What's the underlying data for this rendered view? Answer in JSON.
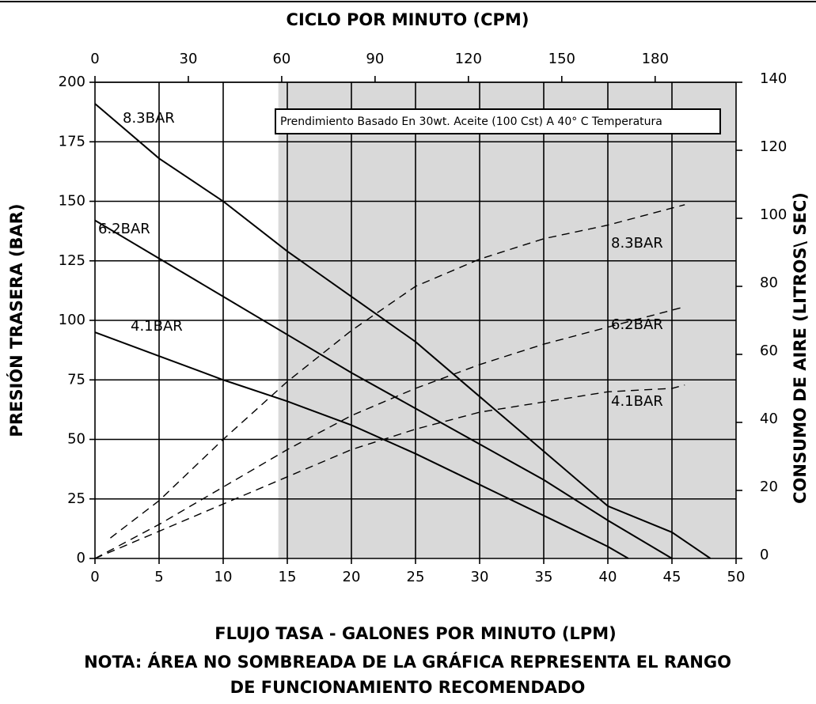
{
  "chart_data": {
    "type": "line",
    "title": "CICLO POR MINUTO (CPM)",
    "x_label": "FLUJO TASA - GALONES POR MINUTO (LPM)",
    "y_label": "PRESIÓN TRASERA (BAR)",
    "y2_label": "CONSUMO DE AIRE (LITROS\\ SEC)",
    "note": [
      "NOTA: ÁREA NO SOMBREADA DE LA GRÁFICA REPRESENTA EL RANGO",
      "DE FUNCIONAMIENTO RECOMENDADO"
    ],
    "annotation": "Prendimiento Basado En 30wt. Aceite (100 Cst) A 40° C Temperatura",
    "xlim": [
      0,
      50
    ],
    "xticks": [
      0,
      5,
      10,
      15,
      20,
      25,
      30,
      35,
      40,
      45,
      50
    ],
    "x2lim": [
      0,
      206
    ],
    "x2ticks": [
      0,
      30,
      60,
      90,
      120,
      150,
      180
    ],
    "ylim": [
      0,
      200
    ],
    "yticks": [
      0,
      25,
      50,
      75,
      100,
      125,
      150,
      175,
      200
    ],
    "y2lim": [
      0,
      140
    ],
    "y2ticks": [
      0,
      20,
      40,
      60,
      80,
      100,
      120,
      140
    ],
    "grid": true,
    "shaded_region": [
      14.3,
      50
    ],
    "series": [
      {
        "name": "8.3BAR",
        "color": "#000000",
        "style": "solid",
        "x": [
          0,
          5,
          10,
          15,
          20,
          25,
          30,
          35,
          40,
          45,
          48
        ],
        "values": [
          191,
          168,
          150,
          129,
          110,
          91,
          68,
          45,
          22,
          11,
          0
        ]
      },
      {
        "name": "6.2BAR",
        "color": "#000000",
        "style": "solid",
        "x": [
          0,
          5,
          10,
          15,
          20,
          25,
          30,
          35,
          40,
          45
        ],
        "values": [
          142,
          126,
          110,
          94,
          78,
          63,
          48,
          33,
          16,
          0
        ]
      },
      {
        "name": "4.1BAR",
        "color": "#000000",
        "style": "solid",
        "x": [
          0,
          5,
          10,
          15,
          20,
          25,
          30,
          35,
          40,
          41.6
        ],
        "values": [
          95,
          85,
          75,
          66,
          56,
          44,
          31,
          18,
          5,
          0
        ]
      },
      {
        "name": "8.3BAR",
        "color": "#000000",
        "style": "dashed",
        "axis": "y2",
        "x": [
          1.2,
          5,
          10,
          15,
          20,
          25,
          30,
          35,
          40,
          45,
          46
        ],
        "values": [
          6,
          17,
          35,
          52,
          67,
          80,
          88,
          94,
          98,
          103,
          104
        ]
      },
      {
        "name": "6.2BAR",
        "color": "#000000",
        "style": "dashed",
        "axis": "y2",
        "x": [
          0,
          5,
          10,
          15,
          20,
          25,
          30,
          35,
          40,
          45,
          46
        ],
        "values": [
          0,
          10,
          21,
          32,
          42,
          50,
          57,
          63,
          68,
          73,
          74
        ]
      },
      {
        "name": "4.1BAR",
        "color": "#000000",
        "style": "dashed",
        "axis": "y2",
        "x": [
          0,
          5,
          10,
          15,
          20,
          25,
          30,
          35,
          40,
          45,
          46
        ],
        "values": [
          0,
          8,
          16,
          24,
          32,
          38,
          43,
          46,
          49,
          50,
          51
        ]
      }
    ]
  }
}
